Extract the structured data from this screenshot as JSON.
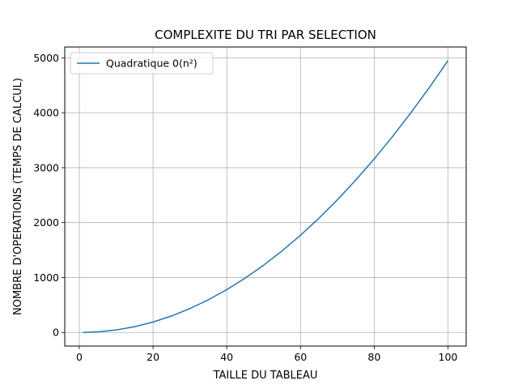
{
  "chart_data": {
    "type": "line",
    "title": "COMPLEXITE DU TRI PAR SELECTION",
    "xlabel": "TAILLE DU TABLEAU",
    "ylabel": "NOMBRE D'OPERATIONS (TEMPS DE CALCUL)",
    "xlim": [
      -3.95,
      104.95
    ],
    "ylim": [
      -247.5,
      5197.5
    ],
    "xticks": [
      0,
      20,
      40,
      60,
      80,
      100
    ],
    "yticks": [
      0,
      1000,
      2000,
      3000,
      4000,
      5000
    ],
    "grid": true,
    "legend_position": "top-left",
    "series": [
      {
        "name": "Quadratique 0(n²)",
        "color": "#1f77b4",
        "x": [
          1,
          5,
          10,
          15,
          20,
          25,
          30,
          35,
          40,
          45,
          50,
          55,
          60,
          65,
          70,
          75,
          80,
          85,
          90,
          95,
          100
        ],
        "y": [
          0,
          10,
          45,
          105,
          190,
          300,
          435,
          595,
          780,
          990,
          1225,
          1485,
          1770,
          2080,
          2415,
          2775,
          3160,
          3570,
          4005,
          4465,
          4950
        ]
      }
    ]
  }
}
